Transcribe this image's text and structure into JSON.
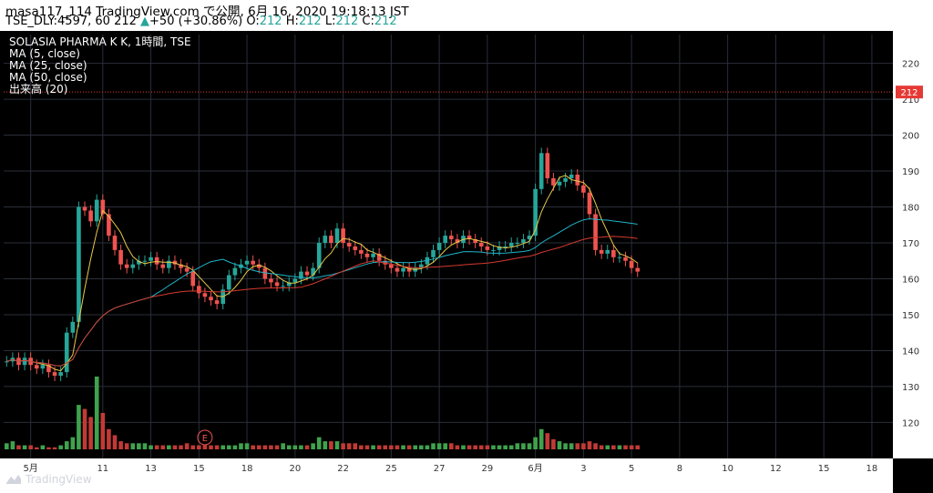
{
  "header": {
    "line1": "masa117_114 TradingView.com で公開, 6月 16, 2020 19:18:13 JST",
    "symbol": "TSE_DLY:4597, 60",
    "last": "212",
    "change": "+50 (+30.86%)",
    "o_label": "O:",
    "o_value": "212",
    "h_label": "H:",
    "h_value": "212",
    "l_label": "L:",
    "l_value": "212",
    "c_label": "C:",
    "c_value": "212"
  },
  "legend": {
    "title": "SOLASIA PHARMA K K, 1時間, TSE",
    "ma5": "MA (5, close)",
    "ma25": "MA (25, close)",
    "ma50": "MA (50, close)",
    "volume": "出来高 (20)"
  },
  "watermark": {
    "text": "TradingView",
    "icon": "tradingview-logo-icon"
  },
  "colors": {
    "up": "#26a69a",
    "down": "#ef5350",
    "ma5": "#e8c94a",
    "ma25": "#1fb4c8",
    "ma50": "#d63a2f",
    "vol_up": "#3fa34d",
    "vol_down": "#c23a35",
    "price_line": "#e53935",
    "background": "#000000",
    "grid": "#2a2e39"
  },
  "chart_data": {
    "type": "candlestick",
    "interval": "1時間",
    "ylim": [
      112,
      228
    ],
    "yticks": [
      120,
      130,
      140,
      150,
      160,
      170,
      180,
      190,
      200,
      210,
      220
    ],
    "last_price": 212,
    "last_price_label": "212",
    "xticks": [
      {
        "label": "5月",
        "bar": 4
      },
      {
        "label": "11",
        "bar": 16
      },
      {
        "label": "13",
        "bar": 24
      },
      {
        "label": "15",
        "bar": 32
      },
      {
        "label": "18",
        "bar": 40
      },
      {
        "label": "20",
        "bar": 48
      },
      {
        "label": "22",
        "bar": 56
      },
      {
        "label": "25",
        "bar": 64
      },
      {
        "label": "27",
        "bar": 72
      },
      {
        "label": "29",
        "bar": 80
      },
      {
        "label": "6月",
        "bar": 88
      },
      {
        "label": "3",
        "bar": 96
      },
      {
        "label": "5",
        "bar": 104
      },
      {
        "label": "8",
        "bar": 112
      },
      {
        "label": "10",
        "bar": 120
      },
      {
        "label": "12",
        "bar": 128
      },
      {
        "label": "15",
        "bar": 136
      },
      {
        "label": "18",
        "bar": 144
      }
    ],
    "event_marker": {
      "label": "E",
      "bar": 33
    },
    "closes": [
      137,
      138,
      136,
      138,
      136,
      135,
      136,
      134,
      133,
      134,
      145,
      148,
      180,
      179,
      176,
      182,
      178,
      172,
      168,
      164,
      163,
      164,
      165,
      165,
      166,
      164,
      163,
      165,
      164,
      163,
      162,
      158,
      156,
      155,
      154,
      153,
      157,
      161,
      163,
      164,
      165,
      164,
      163,
      160,
      159,
      158,
      158,
      159,
      160,
      162,
      161,
      163,
      170,
      172,
      170,
      174,
      170,
      169,
      168,
      167,
      166,
      167,
      165,
      164,
      163,
      162,
      163,
      162,
      163,
      164,
      166,
      168,
      170,
      172,
      171,
      170,
      172,
      171,
      170,
      169,
      168,
      168,
      169,
      169,
      170,
      170,
      171,
      172,
      185,
      195,
      188,
      186,
      187,
      188,
      189,
      186,
      184,
      178,
      168,
      167,
      168,
      166,
      166,
      165,
      163,
      162
    ],
    "volume": [
      3,
      4,
      2,
      2,
      2,
      1,
      2,
      1,
      1,
      2,
      4,
      6,
      22,
      20,
      16,
      36,
      18,
      10,
      7,
      4,
      3,
      3,
      3,
      3,
      2,
      2,
      2,
      2,
      2,
      2,
      3,
      2,
      2,
      2,
      2,
      2,
      2,
      2,
      2,
      3,
      3,
      2,
      2,
      2,
      2,
      2,
      3,
      2,
      2,
      2,
      2,
      3,
      6,
      4,
      4,
      4,
      3,
      3,
      3,
      2,
      2,
      2,
      2,
      2,
      2,
      2,
      2,
      2,
      2,
      2,
      2,
      3,
      3,
      3,
      3,
      2,
      2,
      2,
      2,
      2,
      2,
      2,
      2,
      2,
      2,
      3,
      3,
      3,
      6,
      10,
      8,
      5,
      4,
      3,
      3,
      3,
      3,
      4,
      3,
      2,
      2,
      2,
      2,
      2,
      2,
      2
    ]
  }
}
